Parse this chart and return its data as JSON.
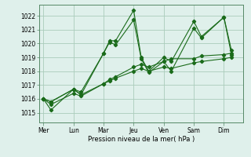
{
  "background_color": "#dff0eb",
  "grid_color": "#aaccbb",
  "line_color": "#1a6b1a",
  "marker_color": "#1a6b1a",
  "ylabel_ticks": [
    1015,
    1016,
    1017,
    1018,
    1019,
    1020,
    1021,
    1022
  ],
  "ylim": [
    1014.3,
    1022.8
  ],
  "xlabel": "Pression niveau de la mer( hPa )",
  "day_labels": [
    "Mer",
    "Lun",
    "Mar",
    "Jeu",
    "Ven",
    "Sam",
    "Dim"
  ],
  "day_positions": [
    0,
    2,
    4,
    6,
    8,
    10,
    12
  ],
  "xlim": [
    -0.3,
    13.3
  ],
  "series1_x": [
    0,
    0.5,
    2,
    2.5,
    4,
    4.4,
    4.8,
    6,
    6.5,
    7.0,
    8,
    8.5,
    10,
    10.5,
    12,
    12.5
  ],
  "series1_y": [
    1016.0,
    1015.8,
    1016.7,
    1016.5,
    1019.3,
    1020.2,
    1020.2,
    1022.4,
    1019.0,
    1018.0,
    1019.0,
    1018.7,
    1021.6,
    1020.5,
    1021.9,
    1019.5
  ],
  "series2_x": [
    0,
    0.5,
    2,
    2.5,
    4,
    4.4,
    4.8,
    6,
    6.5,
    7.0,
    8,
    8.5,
    10,
    10.5,
    12,
    12.5
  ],
  "series2_y": [
    1016.0,
    1015.2,
    1016.7,
    1016.3,
    1019.3,
    1020.1,
    1019.9,
    1021.7,
    1018.9,
    1017.9,
    1018.7,
    1018.0,
    1021.1,
    1020.4,
    1021.9,
    1019.2
  ],
  "series3_x": [
    0,
    0.5,
    2,
    2.5,
    4,
    4.4,
    4.8,
    6,
    6.5,
    7.0,
    8,
    8.5,
    10,
    10.5,
    12,
    12.5
  ],
  "series3_y": [
    1016.0,
    1015.8,
    1016.7,
    1016.3,
    1017.1,
    1017.4,
    1017.6,
    1018.3,
    1018.5,
    1018.3,
    1018.7,
    1018.9,
    1018.9,
    1019.1,
    1019.2,
    1019.3
  ],
  "series4_x": [
    0,
    0.5,
    2,
    2.5,
    4,
    4.4,
    4.8,
    6,
    6.5,
    7.0,
    8,
    8.5,
    10,
    10.5,
    12,
    12.5
  ],
  "series4_y": [
    1016.0,
    1015.6,
    1016.4,
    1016.2,
    1017.1,
    1017.3,
    1017.5,
    1018.0,
    1018.2,
    1018.0,
    1018.3,
    1018.2,
    1018.6,
    1018.7,
    1018.9,
    1019.0
  ]
}
